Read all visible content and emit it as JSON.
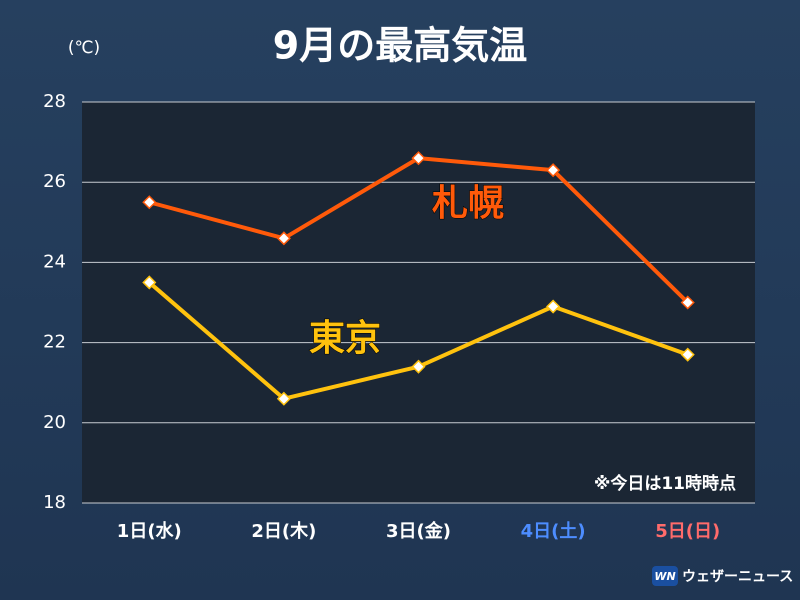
{
  "chart_data": {
    "type": "line",
    "title": "9月の最高気温",
    "y_label": "(℃)",
    "categories": [
      "1日(水)",
      "2日(木)",
      "3日(金)",
      "4日(土)",
      "5日(日)"
    ],
    "category_colors": [
      "#ffffff",
      "#ffffff",
      "#ffffff",
      "#4d8dff",
      "#ff6b6b"
    ],
    "series": [
      {
        "name": "札幌",
        "color": "#ff5a0a",
        "values": [
          25.5,
          24.6,
          26.6,
          26.3,
          23.0
        ]
      },
      {
        "name": "東京",
        "color": "#ffc20e",
        "values": [
          23.5,
          20.6,
          21.4,
          22.9,
          21.7
        ]
      }
    ],
    "ylim": [
      18,
      28
    ],
    "yticks": [
      18,
      20,
      22,
      24,
      26,
      28
    ],
    "grid": true,
    "annotation": "※今日は11時時点",
    "source": "ウェザーニュース"
  }
}
